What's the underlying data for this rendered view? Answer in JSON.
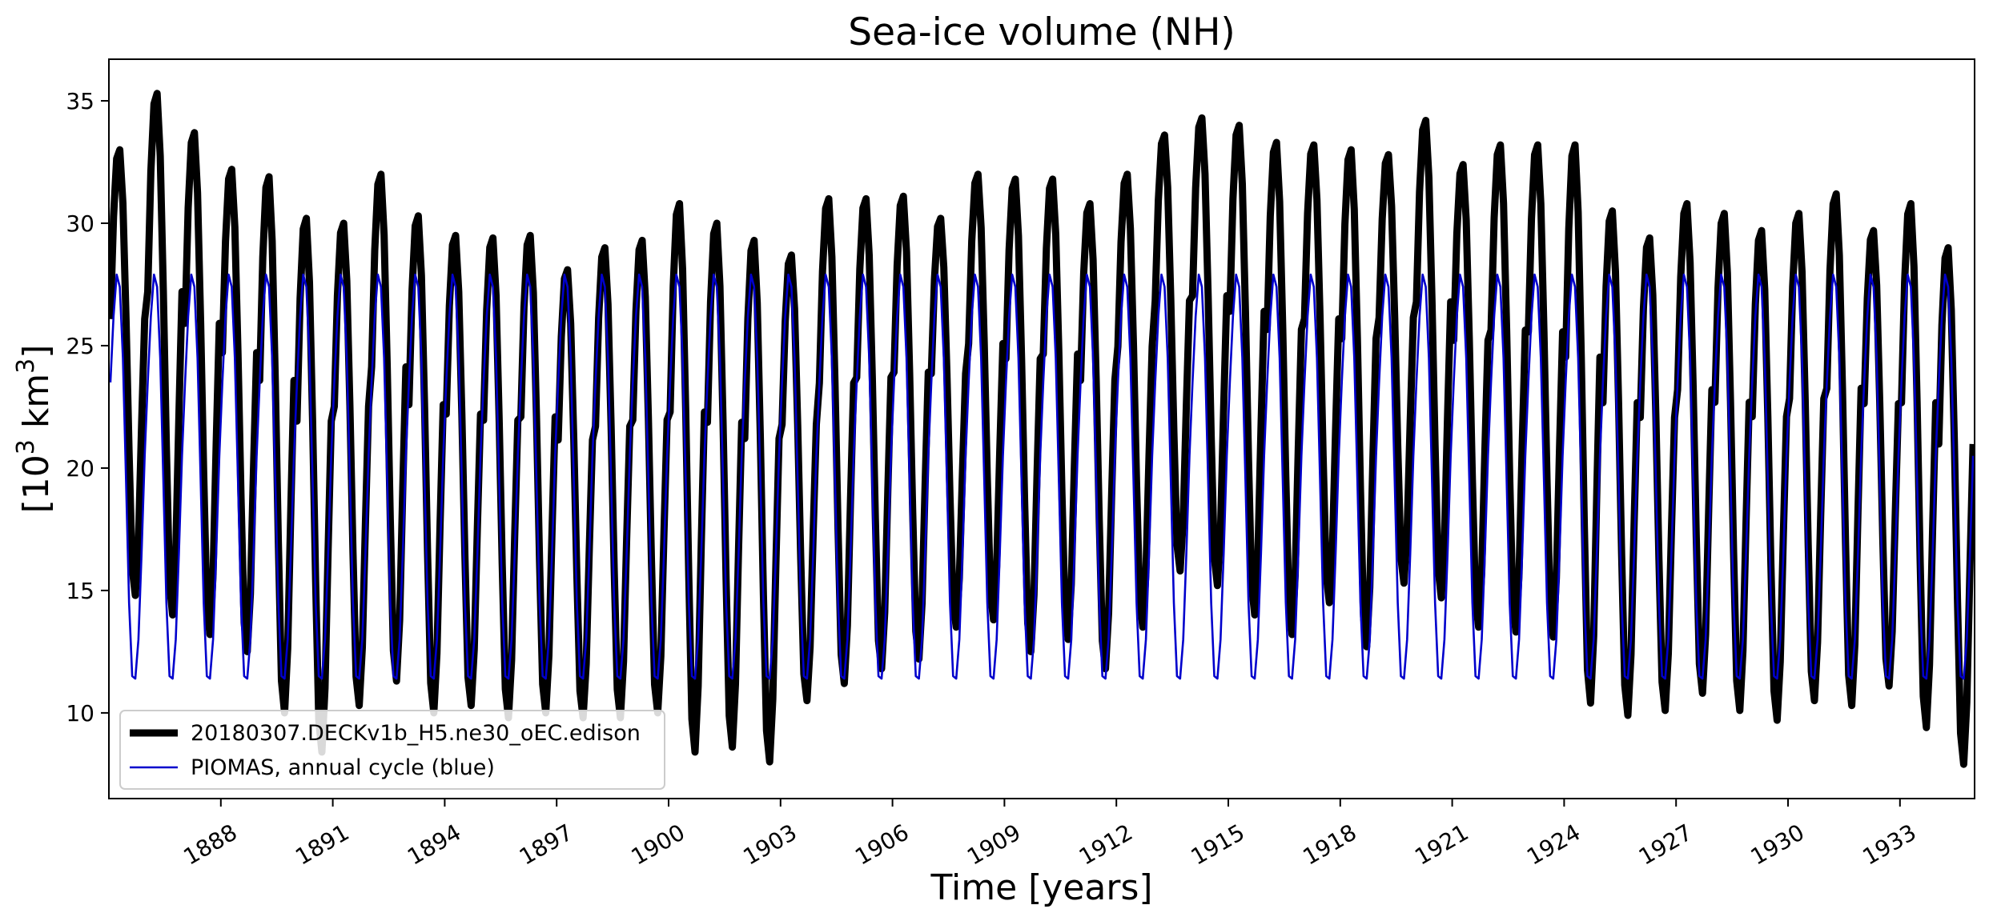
{
  "chart_data": {
    "type": "line",
    "title": "Sea-ice volume (NH)",
    "xlabel": "Time [years]",
    "ylabel": "[10³ km³]",
    "ylabel_parts": {
      "open": "[10",
      "exp1": "3",
      "mid": " km",
      "exp2": "3",
      "close": "]"
    },
    "xlim": [
      1885.0,
      1935.0
    ],
    "ylim": [
      6.5,
      36.7
    ],
    "xticks": [
      1888,
      1891,
      1894,
      1897,
      1900,
      1903,
      1906,
      1909,
      1912,
      1915,
      1918,
      1921,
      1924,
      1927,
      1930,
      1933
    ],
    "xtick_labels": [
      "1888",
      "1891",
      "1894",
      "1897",
      "1900",
      "1903",
      "1906",
      "1909",
      "1912",
      "1915",
      "1918",
      "1921",
      "1924",
      "1927",
      "1930",
      "1933"
    ],
    "yticks": [
      10,
      15,
      20,
      25,
      30,
      35
    ],
    "ytick_labels": [
      "10",
      "15",
      "20",
      "25",
      "30",
      "35"
    ],
    "grid": false,
    "legend_position": "lower-left",
    "series": [
      {
        "name": "20180307.DECKv1b_H5.ne30_oEC.edison",
        "color": "#000000",
        "style": "thick",
        "annual_max": [
          33.0,
          35.3,
          33.7,
          32.2,
          31.9,
          30.2,
          30.0,
          32.0,
          30.3,
          29.5,
          29.4,
          29.5,
          28.1,
          29.0,
          29.3,
          30.8,
          30.0,
          29.3,
          28.7,
          31.0,
          31.0,
          31.1,
          30.2,
          32.0,
          31.8,
          31.8,
          30.8,
          32.0,
          33.6,
          34.3,
          34.0,
          33.3,
          33.2,
          33.0,
          32.8,
          34.2,
          32.4,
          33.2,
          33.2,
          33.2,
          30.5,
          29.4,
          30.8,
          30.4,
          29.7,
          30.4,
          31.2,
          29.7,
          30.8,
          29.0
        ],
        "annual_min": [
          14.8,
          14.0,
          13.2,
          12.5,
          10.0,
          8.4,
          10.3,
          11.3,
          10.0,
          10.3,
          9.8,
          10.0,
          9.8,
          9.8,
          10.0,
          8.4,
          8.6,
          8.0,
          10.5,
          11.2,
          11.8,
          12.2,
          13.5,
          13.8,
          12.5,
          13.0,
          11.8,
          13.5,
          15.8,
          15.2,
          14.0,
          13.2,
          14.5,
          12.7,
          15.3,
          14.7,
          13.5,
          13.3,
          13.1,
          10.4,
          9.9,
          10.1,
          10.8,
          10.1,
          9.7,
          10.5,
          10.3,
          11.1,
          9.4,
          7.9
        ]
      },
      {
        "name": "PIOMAS, annual cycle (blue)",
        "color": "#0000cc",
        "style": "thin",
        "monthly_cycle": [
          23.5,
          26.2,
          27.9,
          27.4,
          24.5,
          19.5,
          14.5,
          11.5,
          11.4,
          13.0,
          16.5,
          20.5
        ]
      }
    ]
  }
}
